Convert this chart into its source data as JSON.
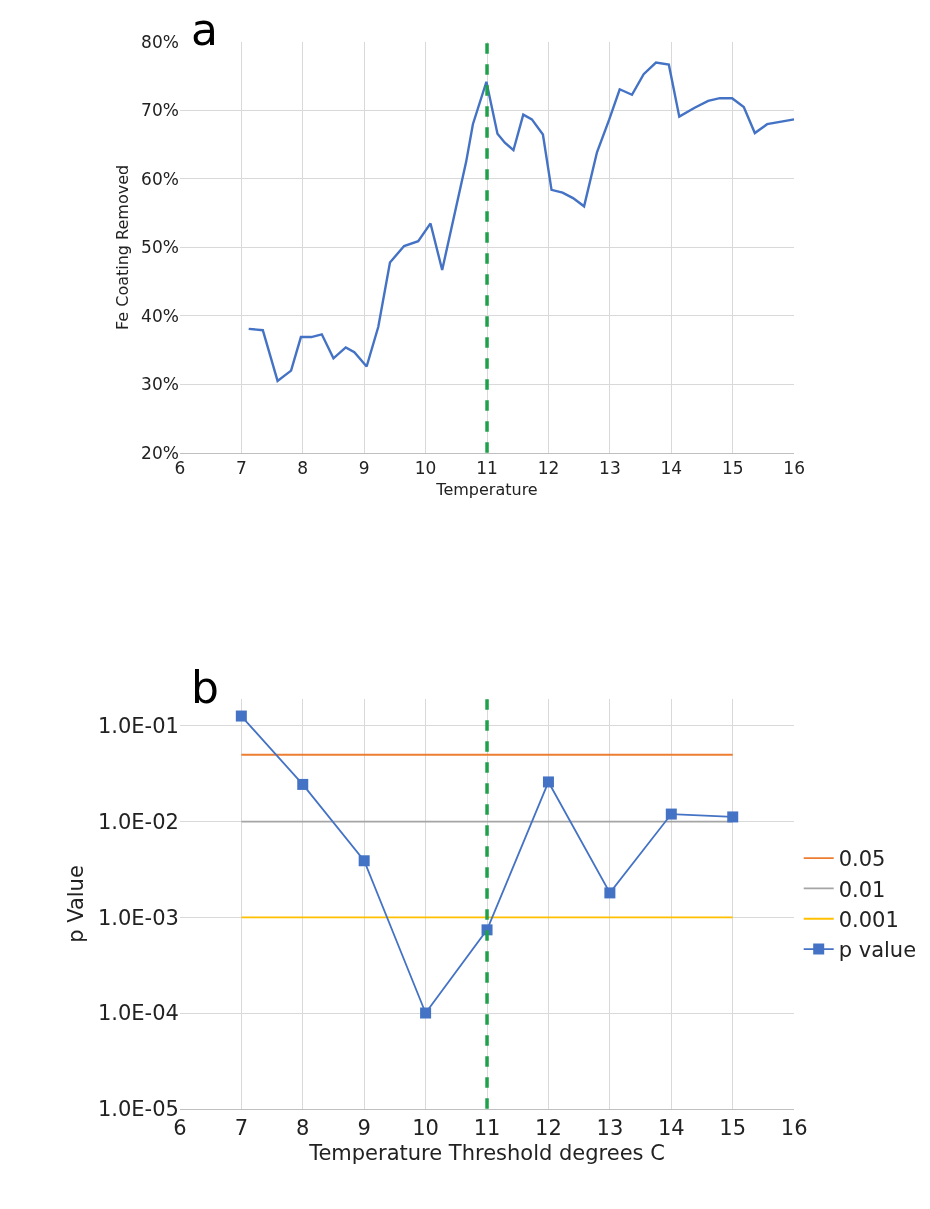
{
  "chart_data": [
    {
      "type": "line",
      "xlabel": "Temperature",
      "ylabel": "Fe Coating Removed",
      "annotations": [
        "a"
      ],
      "series": [
        {
          "color": "#4472c4",
          "x": [
            7.12,
            7.35,
            7.59,
            7.81,
            7.97,
            8.14,
            8.31,
            8.5,
            8.7,
            8.84,
            9.04,
            9.23,
            9.42,
            9.65,
            9.88,
            10.08,
            10.27,
            10.66,
            10.77,
            10.99,
            11.17,
            11.29,
            11.43,
            11.59,
            11.73,
            11.91,
            12.05,
            12.23,
            12.4,
            12.58,
            12.79,
            12.99,
            13.16,
            13.36,
            13.55,
            13.75,
            13.96,
            14.13,
            14.38,
            14.6,
            14.79,
            14.99,
            15.18,
            15.36,
            15.56,
            16.0
          ],
          "values": [
            38.1,
            37.9,
            30.5,
            32.0,
            36.9,
            36.9,
            37.3,
            33.8,
            35.4,
            34.7,
            32.6,
            38.4,
            47.8,
            50.2,
            50.9,
            53.5,
            46.7,
            62.5,
            68.0,
            74.2,
            66.6,
            65.3,
            64.2,
            69.4,
            68.7,
            66.5,
            58.4,
            58.0,
            57.2,
            56.0,
            63.9,
            68.7,
            73.1,
            72.3,
            75.3,
            77.0,
            76.7,
            69.1,
            70.4,
            71.4,
            71.8,
            71.8,
            70.5,
            66.7,
            68.0,
            68.7
          ]
        }
      ],
      "xlim": [
        6,
        16
      ],
      "xticks": [
        6,
        7,
        8,
        9,
        10,
        11,
        12,
        13,
        14,
        15,
        16
      ],
      "ylim": [
        20,
        80
      ],
      "yticks": [
        {
          "value": 20,
          "label": "20%"
        },
        {
          "value": 30,
          "label": "30%"
        },
        {
          "value": 40,
          "label": "40%"
        },
        {
          "value": 50,
          "label": "50%"
        },
        {
          "value": 60,
          "label": "60%"
        },
        {
          "value": 70,
          "label": "70%"
        },
        {
          "value": 80,
          "label": "80%"
        }
      ],
      "grid": true,
      "marker": "none",
      "line_style": "solid",
      "legend": false,
      "ref_lines": [
        {
          "axis": "x",
          "value": 11,
          "color": "#1fa04a",
          "line_style": "dashed"
        }
      ]
    },
    {
      "type": "line",
      "xlabel": "Temperature Threshold degrees C",
      "ylabel": "p Value",
      "annotations": [
        "b"
      ],
      "x": [
        7,
        8,
        9,
        10,
        11,
        12,
        13,
        14,
        15
      ],
      "series": [
        {
          "name": "0.05",
          "color": "#ed7d31",
          "x": [
            7,
            15
          ],
          "values": [
            0.05,
            0.05
          ],
          "marker": "none"
        },
        {
          "name": "0.01",
          "color": "#a5a5a5",
          "x": [
            7,
            15
          ],
          "values": [
            0.01,
            0.01
          ],
          "marker": "none"
        },
        {
          "name": "0.001",
          "color": "#ffc000",
          "x": [
            7,
            15
          ],
          "values": [
            0.001,
            0.001
          ],
          "marker": "none"
        },
        {
          "name": "p value",
          "color": "#4472c4",
          "values": [
            0.127,
            0.0245,
            0.0039,
            0.0001,
            0.00074,
            0.026,
            0.0018,
            0.012,
            0.0112
          ],
          "marker": "square"
        }
      ],
      "log": "y",
      "xlim": [
        6,
        16
      ],
      "xticks": [
        6,
        7,
        8,
        9,
        10,
        11,
        12,
        13,
        14,
        15,
        16
      ],
      "ylim": [
        1e-05,
        0.19
      ],
      "yticks": [
        {
          "value": 1e-05,
          "label": "1.0E-05"
        },
        {
          "value": 0.0001,
          "label": "1.0E-04"
        },
        {
          "value": 0.001,
          "label": "1.0E-03"
        },
        {
          "value": 0.01,
          "label": "1.0E-02"
        },
        {
          "value": 0.1,
          "label": "1.0E-01"
        }
      ],
      "grid": true,
      "line_style": "solid",
      "legend": "right",
      "ref_lines": [
        {
          "axis": "x",
          "value": 11,
          "color": "#1fa04a",
          "line_style": "dashed"
        }
      ]
    }
  ]
}
